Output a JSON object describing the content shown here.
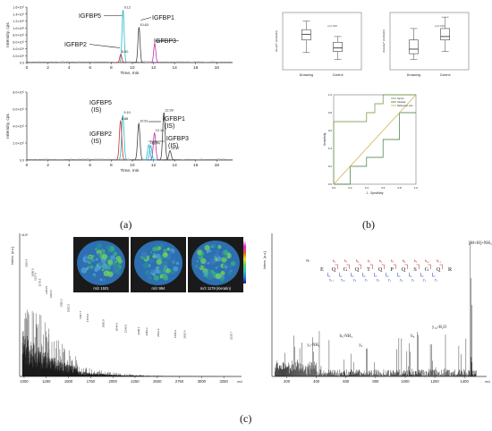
{
  "panel_labels": {
    "a": "(a)",
    "b": "(b)",
    "c": "(c)"
  },
  "chart_data": [
    {
      "id": "a-top",
      "type": "line",
      "ylabel": "Intensity, cps",
      "xlabel": "Time, min",
      "xlim": [
        0,
        19.5
      ],
      "ylim": [
        0,
        1600000.0
      ],
      "xticks": [
        "0",
        "2",
        "4",
        "6",
        "8",
        "10",
        "12",
        "14",
        "16",
        "18"
      ],
      "yticks": [
        "0.0",
        "2.0×10⁵",
        "4.0×10⁵",
        "6.0×10⁵",
        "8.0×10⁵",
        "1.0×10⁶",
        "1.2×10⁶",
        "1.4×10⁶",
        "1.6×10⁶"
      ],
      "peaks": [
        {
          "name": "IGFBP5",
          "rt": "9.12",
          "x": 9.12,
          "y": 1520000.0,
          "color": "#29b6c8"
        },
        {
          "name": "IGFBP2",
          "rt": "8.90",
          "x": 8.9,
          "y": 240000.0,
          "color": "#d03030"
        },
        {
          "name": "IGFBP1",
          "rt": "10.63",
          "x": 10.63,
          "y": 1020000.0,
          "color": "#444444"
        },
        {
          "name": "IGFBP3",
          "rt": "12.12",
          "x": 12.12,
          "y": 550000.0,
          "color": "#c030b0"
        }
      ]
    },
    {
      "id": "a-bottom",
      "type": "line",
      "ylabel": "Intensity, cps",
      "xlabel": "Time, min",
      "xlim": [
        0,
        19.5
      ],
      "ylim": [
        0,
        800000.0
      ],
      "xticks": [
        "0",
        "2",
        "4",
        "6",
        "8",
        "10",
        "12",
        "14",
        "16",
        "18"
      ],
      "yticks": [
        "0.0",
        "2.0×10⁵",
        "4.0×10⁵",
        "6.0×10⁵",
        "8.0×10⁵"
      ],
      "peaks": [
        {
          "name": "IGFBP5 (IS)",
          "rt": "9.10",
          "x": 9.1,
          "y": 530000.0,
          "color": "#29b6c8"
        },
        {
          "name": "IGFBP2 (IS)",
          "rt": "8.88",
          "x": 8.88,
          "y": 460000.0,
          "color": "#d03030"
        },
        {
          "name": "IGFBP1 (IS)",
          "rt": "10.61",
          "x": 10.61,
          "y": 430000.0,
          "color": "#444444"
        },
        {
          "name": "IGFBP3 (IS)",
          "rt": "12.10",
          "x": 12.1,
          "y": 320000.0,
          "color": "#c030b0"
        },
        {
          "name": "",
          "rt": "12.99",
          "x": 12.99,
          "y": 560000.0,
          "color": "#444444"
        },
        {
          "name": "",
          "rt": "11.56",
          "x": 11.56,
          "y": 180000.0,
          "color": "#29b6c8"
        },
        {
          "name": "",
          "rt": "11.74",
          "x": 11.74,
          "y": 170000.0,
          "color": "#29b6c8"
        },
        {
          "name": "",
          "rt": "13.57",
          "x": 13.57,
          "y": 110000.0,
          "color": "#444444"
        }
      ]
    },
    {
      "id": "b-box-left",
      "type": "box",
      "ylabel": "Serum* (Units/ml)",
      "categories": [
        "Drowning",
        "Control"
      ],
      "annotation": "p=0.005",
      "boxes": [
        {
          "min": 0.3,
          "q1": 0.52,
          "median": 0.62,
          "q3": 0.7,
          "max": 0.85
        },
        {
          "min": 0.18,
          "q1": 0.32,
          "median": 0.38,
          "q3": 0.48,
          "max": 0.58
        }
      ]
    },
    {
      "id": "b-box-right",
      "type": "box",
      "ylabel": "Alveolar* (Units/ml)",
      "categories": [
        "Drowning",
        "Control"
      ],
      "annotation": "p=0.018",
      "boxes": [
        {
          "min": 0.18,
          "q1": 0.28,
          "median": 0.36,
          "q3": 0.52,
          "max": 0.72
        },
        {
          "min": 0.32,
          "q1": 0.52,
          "median": 0.58,
          "q3": 0.72,
          "max": 0.92
        }
      ]
    },
    {
      "id": "b-roc",
      "type": "line",
      "xlabel": "1 - Specificity",
      "ylabel": "Sensitivity",
      "xlim": [
        0,
        1
      ],
      "ylim": [
        0,
        1
      ],
      "ticks": [
        "0.0",
        "0.2",
        "0.4",
        "0.6",
        "0.8",
        "1.0"
      ],
      "legend": [
        "Serum",
        "Alveolar",
        "Reference Line"
      ],
      "series": [
        {
          "name": "Serum",
          "color": "#6a8f3a",
          "x": [
            0,
            0,
            0.4,
            0.4,
            0.5,
            0.5,
            0.6,
            0.6,
            1.0
          ],
          "y": [
            0,
            0.7,
            0.7,
            0.8,
            0.8,
            0.9,
            0.9,
            1.0,
            1.0
          ]
        },
        {
          "name": "Alveolar",
          "color": "#3a7a3a",
          "x": [
            0,
            0.2,
            0.2,
            0.4,
            0.4,
            0.6,
            0.6,
            0.8,
            0.8,
            1.0
          ],
          "y": [
            0,
            0,
            0.2,
            0.2,
            0.3,
            0.3,
            0.5,
            0.5,
            0.8,
            0.8
          ]
        },
        {
          "name": "Reference Line",
          "color": "#c8b040",
          "x": [
            0,
            1
          ],
          "y": [
            0,
            1
          ]
        }
      ]
    },
    {
      "id": "c-left",
      "type": "bar",
      "ylabel": "Intens. [a.u.]",
      "xlabel": "m/z",
      "xlim": [
        950,
        3450
      ],
      "xticks": [
        "1000",
        "1250",
        "1500",
        "1750",
        "2000",
        "2250",
        "2500",
        "2750",
        "3000",
        "3250"
      ],
      "peak_labels": [
        {
          "x": 1026,
          "label": "1026.4"
        },
        {
          "x": 1095,
          "label": "1095.5"
        },
        {
          "x": 1127,
          "label": "1127.6"
        },
        {
          "x": 1179,
          "label": "1179.5"
        },
        {
          "x": 1254,
          "label": "1254.5"
        },
        {
          "x": 1301,
          "label": "1301.5"
        },
        {
          "x": 1420,
          "label": "1420.6"
        },
        {
          "x": 1501,
          "label": "1501.5"
        },
        {
          "x": 1637,
          "label": "1637.7"
        },
        {
          "x": 1715,
          "label": "1715.8"
        },
        {
          "x": 1892,
          "label": "1892.9"
        },
        {
          "x": 2044,
          "label": "2044.0"
        },
        {
          "x": 2146,
          "label": "2146.0"
        },
        {
          "x": 2290,
          "label": "2290.1"
        },
        {
          "x": 2383,
          "label": "2383.2"
        },
        {
          "x": 2512,
          "label": "2512.2"
        },
        {
          "x": 2705,
          "label": "2705.3"
        },
        {
          "x": 2810,
          "label": "2810.4"
        },
        {
          "x": 3335,
          "label": "3335.7"
        }
      ],
      "images": [
        {
          "label": "m/z 1501"
        },
        {
          "label": "m/z 994"
        },
        {
          "label": "m/z 1179 (Keratin)"
        }
      ]
    },
    {
      "id": "c-right",
      "type": "bar",
      "ylabel": "Intens. [a.u.]",
      "xlabel": "m/z",
      "xlim": [
        100,
        1550
      ],
      "xticks": [
        "200",
        "400",
        "600",
        "800",
        "1000",
        "1200",
        "1400"
      ],
      "precursor_label": "[M+H]+NH₃",
      "sequence": [
        "E",
        "Q",
        "G",
        "Q",
        "T",
        "Q",
        "P",
        "Q",
        "S",
        "G",
        "Q",
        "R"
      ],
      "b_ions": [
        "b₂",
        "b₃",
        "b₄",
        "b₅",
        "b₆",
        "b₇",
        "b₈",
        "b₉",
        "b₁₀",
        "b₁₁"
      ],
      "y_ions": [
        "y₁₁",
        "y₁₀",
        "y₈",
        "y₇",
        "y₆",
        "y₅",
        "y₄",
        "y₃",
        "y₂",
        "y₁"
      ],
      "ion_labels": [
        {
          "x": 380,
          "label": "y₃-NH₃"
        },
        {
          "x": 600,
          "label": "b₅-NH₃"
        },
        {
          "x": 1230,
          "label": "y₁₀-H₂O"
        },
        {
          "x": 700,
          "label": "y₆"
        },
        {
          "x": 1050,
          "label": "b₉"
        }
      ]
    }
  ]
}
